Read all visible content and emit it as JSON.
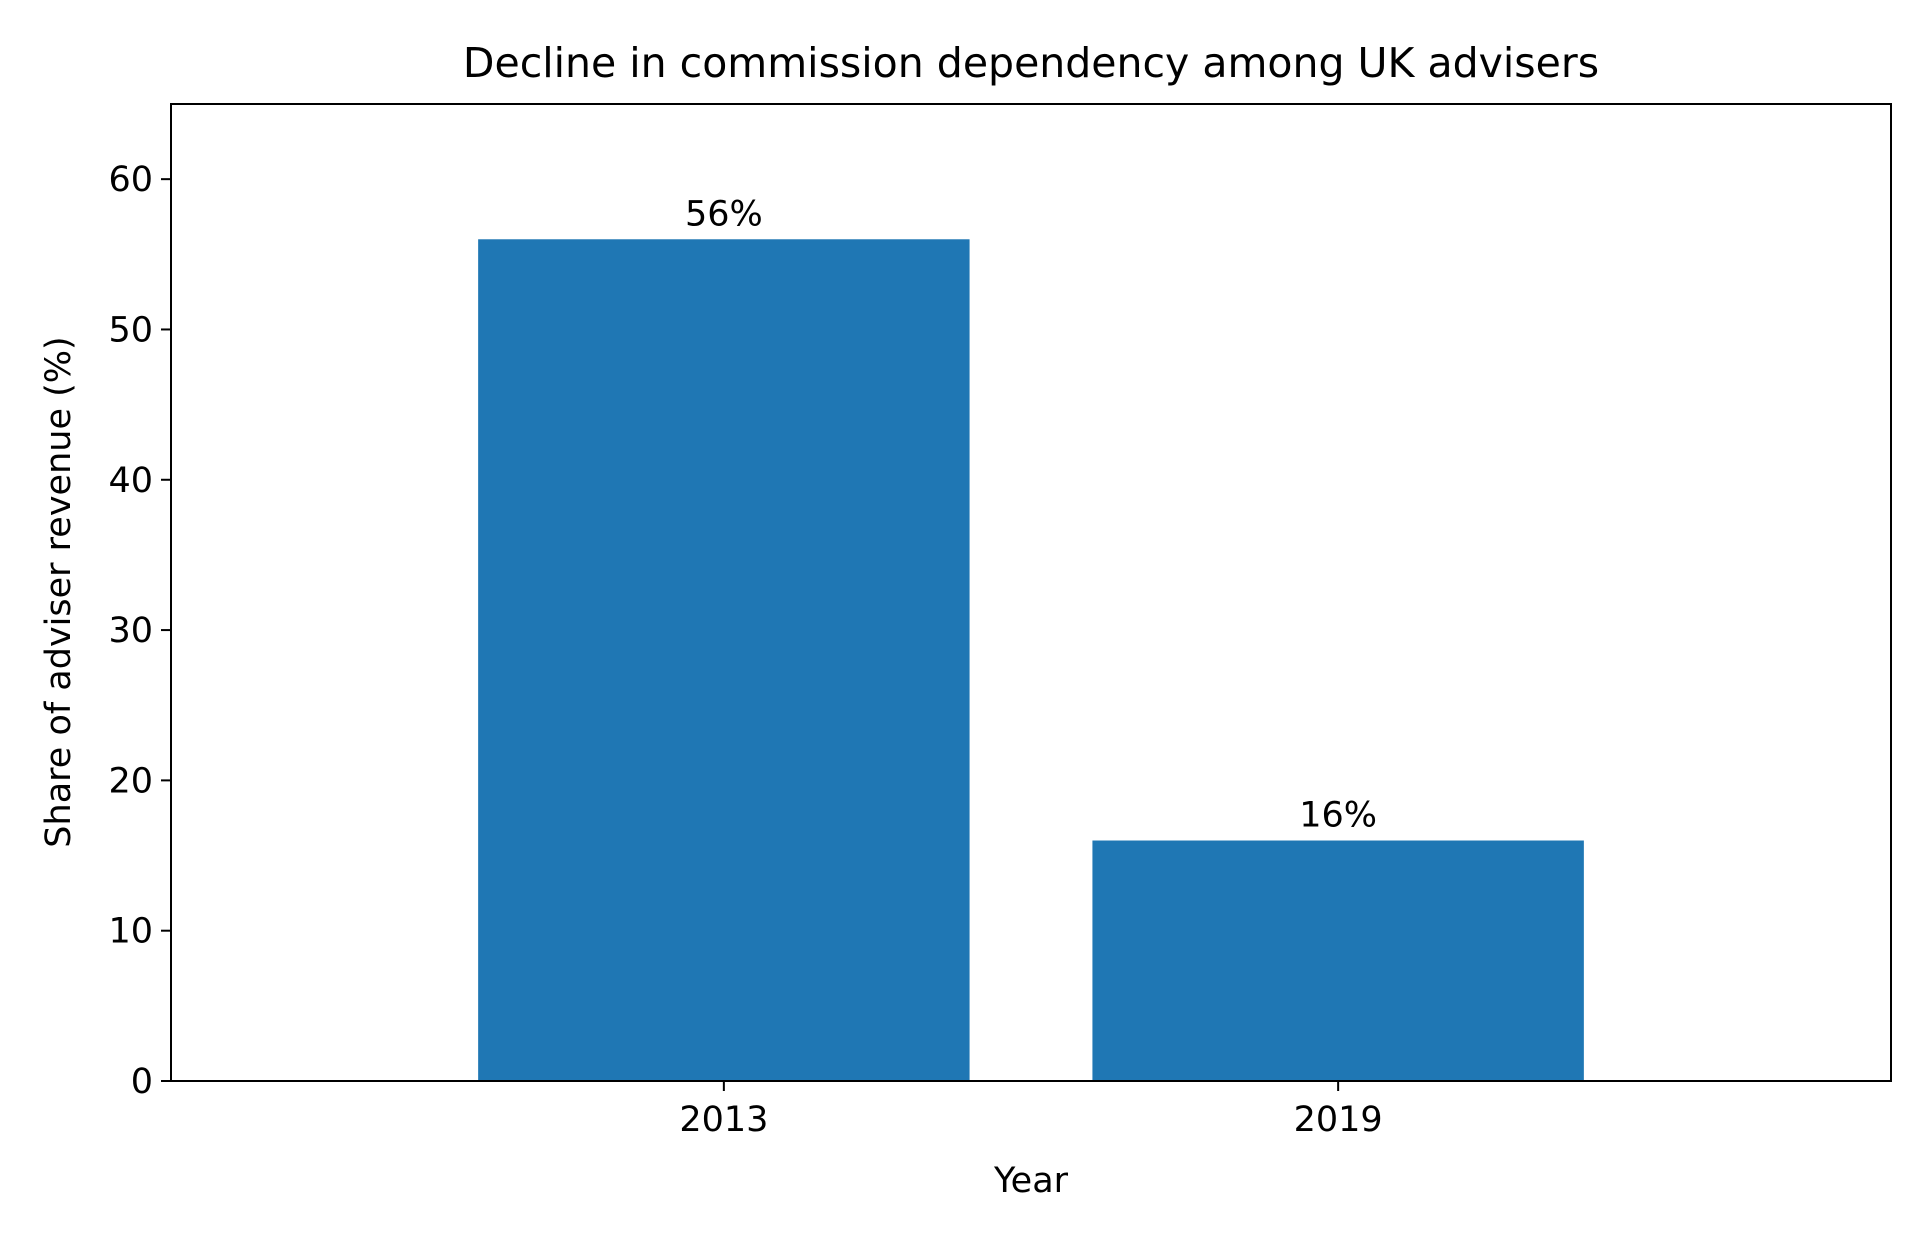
{
  "chart_data": {
    "type": "bar",
    "title": "Decline in commission dependency among UK advisers",
    "xlabel": "Year",
    "ylabel": "Share of adviser revenue (%)",
    "categories": [
      "2013",
      "2019"
    ],
    "values": [
      56,
      16
    ],
    "data_labels": [
      "56%",
      "16%"
    ],
    "ylim": [
      0,
      65
    ],
    "yticks": [
      0,
      10,
      20,
      30,
      40,
      50,
      60
    ],
    "ytick_labels": [
      "0",
      "10",
      "20",
      "30",
      "40",
      "50",
      "60"
    ],
    "grid": false,
    "legend": "none",
    "bar_color": "#1f77b4"
  }
}
